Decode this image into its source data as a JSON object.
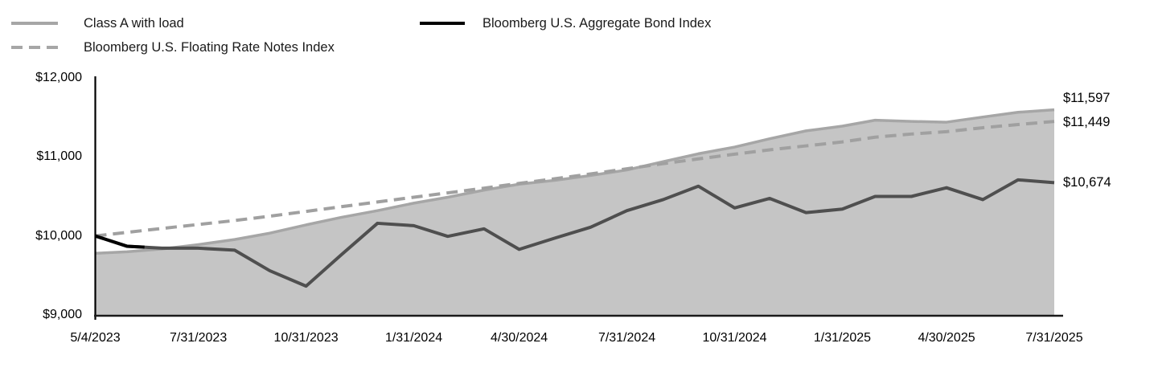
{
  "legend": {
    "items": [
      {
        "label": "Class A with load",
        "style": "solid-gray"
      },
      {
        "label": "Bloomberg U.S. Floating Rate Notes Index",
        "style": "dashed-gray"
      },
      {
        "label": "Bloomberg U.S. Aggregate Bond Index",
        "style": "solid-black"
      }
    ]
  },
  "chart_data": {
    "type": "area",
    "title": "",
    "xlabel": "",
    "ylabel": "",
    "ylim": [
      9000,
      12000
    ],
    "grid": false,
    "legend_position": "top-left",
    "x": [
      "5/4/2023",
      "5/31/2023",
      "6/30/2023",
      "7/31/2023",
      "8/31/2023",
      "9/30/2023",
      "10/31/2023",
      "11/30/2023",
      "12/31/2023",
      "1/31/2024",
      "2/29/2024",
      "3/31/2024",
      "4/30/2024",
      "5/31/2024",
      "6/30/2024",
      "7/31/2024",
      "8/31/2024",
      "9/30/2024",
      "10/31/2024",
      "11/30/2024",
      "12/31/2024",
      "1/31/2025",
      "2/28/2025",
      "3/31/2025",
      "4/30/2025",
      "5/31/2025",
      "6/30/2025",
      "7/31/2025"
    ],
    "x_days": [
      0,
      27,
      57,
      88,
      119,
      149,
      180,
      210,
      241,
      272,
      301,
      332,
      362,
      393,
      423,
      454,
      485,
      515,
      546,
      576,
      607,
      638,
      666,
      697,
      727,
      758,
      788,
      819
    ],
    "series": [
      {
        "name": "Class A with load",
        "kind": "area",
        "color": "#a6a6a6",
        "fill": "#c5c5c5",
        "end_label": "$11,597",
        "values": [
          9780,
          9800,
          9835,
          9890,
          9955,
          10035,
          10140,
          10235,
          10320,
          10415,
          10490,
          10580,
          10655,
          10705,
          10765,
          10835,
          10940,
          11040,
          11125,
          11230,
          11330,
          11390,
          11465,
          11450,
          11440,
          11505,
          11565,
          11597
        ]
      },
      {
        "name": "Bloomberg U.S. Floating Rate Notes Index",
        "kind": "line",
        "dashed": true,
        "color": "#a0a0a0",
        "end_label": "$11,449",
        "values": [
          10000,
          10045,
          10095,
          10145,
          10195,
          10250,
          10310,
          10370,
          10430,
          10490,
          10545,
          10605,
          10665,
          10725,
          10785,
          10850,
          10915,
          10975,
          11035,
          11090,
          11140,
          11190,
          11250,
          11290,
          11320,
          11370,
          11410,
          11449
        ]
      },
      {
        "name": "Bloomberg U.S. Aggregate Bond Index",
        "kind": "line",
        "color": "#4f4f4f",
        "lead_color": "#000000",
        "end_label": "$10,674",
        "values": [
          10000,
          9870,
          9845,
          9845,
          9820,
          9560,
          9365,
          9760,
          10160,
          10130,
          9995,
          10090,
          9830,
          9975,
          10110,
          10320,
          10460,
          10630,
          10355,
          10475,
          10295,
          10340,
          10500,
          10500,
          10610,
          10460,
          10710,
          10674
        ]
      }
    ],
    "y_ticks": [
      {
        "value": 12000,
        "label": "$12,000"
      },
      {
        "value": 11000,
        "label": "$11,000"
      },
      {
        "value": 10000,
        "label": "$10,000"
      },
      {
        "value": 9000,
        "label": "$9,000"
      }
    ],
    "x_ticks": [
      {
        "day": 0,
        "label": "5/4/2023"
      },
      {
        "day": 88,
        "label": "7/31/2023"
      },
      {
        "day": 180,
        "label": "10/31/2023"
      },
      {
        "day": 272,
        "label": "1/31/2024"
      },
      {
        "day": 362,
        "label": "4/30/2024"
      },
      {
        "day": 454,
        "label": "7/31/2024"
      },
      {
        "day": 546,
        "label": "10/31/2024"
      },
      {
        "day": 638,
        "label": "1/31/2025"
      },
      {
        "day": 727,
        "label": "4/30/2025"
      },
      {
        "day": 819,
        "label": "7/31/2025"
      }
    ]
  }
}
